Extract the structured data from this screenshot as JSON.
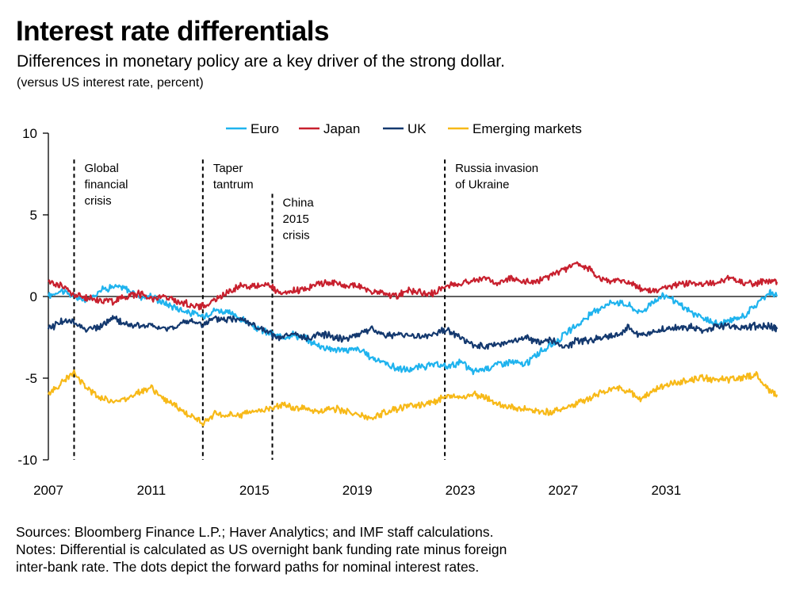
{
  "header": {
    "title": "Interest rate differentials",
    "subtitle": "Differences in monetary policy are a key driver of the strong dollar.",
    "units": "(versus US interest rate, percent)"
  },
  "footer": {
    "sources": "Sources: Bloomberg Finance L.P.; Haver Analytics; and IMF staff calculations.",
    "notes_line1": "Notes: Differential is calculated as US overnight bank funding rate minus foreign",
    "notes_line2": "inter-bank rate. The dots depict the forward paths for nominal interest rates."
  },
  "chart_data": {
    "type": "line",
    "title": "Interest rate differentials",
    "ylabel": "percent",
    "xlim": [
      2007,
      2035.3
    ],
    "ylim": [
      -10,
      10
    ],
    "x_ticks": [
      2007,
      2011,
      2015,
      2019,
      2023,
      2027,
      2031
    ],
    "y_ticks": [
      10,
      5,
      0,
      -5,
      -10
    ],
    "y_tick_labels": [
      "10",
      "5",
      "0",
      "-5",
      "-10"
    ],
    "zero_line": true,
    "legend_position": "top",
    "x": [
      2007.0,
      2007.5,
      2008.0,
      2008.5,
      2009.0,
      2009.5,
      2010.0,
      2010.5,
      2011.0,
      2011.5,
      2012.0,
      2012.5,
      2013.0,
      2013.5,
      2014.0,
      2014.5,
      2015.0,
      2015.5,
      2016.0,
      2016.5,
      2017.0,
      2017.5,
      2018.0,
      2018.5,
      2019.0,
      2019.5,
      2020.0,
      2020.5,
      2021.0,
      2021.5,
      2022.0,
      2022.5,
      2023.0,
      2023.5,
      2024.0,
      2024.5,
      2025.0,
      2025.5,
      2026.0,
      2026.5,
      2027.0,
      2027.5,
      2028.0,
      2028.5,
      2029.0,
      2029.5,
      2030.0,
      2030.5,
      2031.0,
      2031.5,
      2032.0,
      2032.5,
      2033.0,
      2033.5,
      2034.0,
      2034.5,
      2035.0,
      2035.3
    ],
    "series": [
      {
        "name": "Euro",
        "color": "#1FB3EE",
        "values": [
          0.0,
          0.4,
          0.0,
          -0.3,
          0.4,
          0.6,
          0.5,
          0.0,
          0.0,
          -0.4,
          -0.7,
          -1.0,
          -1.2,
          -0.8,
          -1.0,
          -1.4,
          -1.9,
          -2.2,
          -2.5,
          -2.3,
          -2.6,
          -3.0,
          -3.2,
          -3.3,
          -3.2,
          -3.7,
          -4.0,
          -4.4,
          -4.5,
          -4.3,
          -4.2,
          -4.3,
          -4.0,
          -4.6,
          -4.4,
          -4.1,
          -4.0,
          -4.2,
          -3.5,
          -3.0,
          -2.4,
          -1.8,
          -1.2,
          -0.6,
          -0.3,
          -0.5,
          -1.0,
          -0.3,
          0.1,
          -0.5,
          -1.0,
          -1.4,
          -1.7,
          -1.5,
          -1.2,
          -0.5,
          0.3,
          0.0
        ]
      },
      {
        "name": "Japan",
        "color": "#C8202E",
        "values": [
          0.9,
          0.7,
          0.1,
          -0.1,
          -0.2,
          -0.3,
          0.0,
          0.2,
          -0.1,
          0.0,
          -0.3,
          -0.5,
          -0.6,
          -0.2,
          0.3,
          0.7,
          0.6,
          0.8,
          0.1,
          0.3,
          0.5,
          0.8,
          0.9,
          0.6,
          0.7,
          0.3,
          0.2,
          0.0,
          0.4,
          0.2,
          0.2,
          0.7,
          0.8,
          1.0,
          1.1,
          0.8,
          1.2,
          0.9,
          0.9,
          1.3,
          1.6,
          2.0,
          1.7,
          1.0,
          1.0,
          0.9,
          0.5,
          0.3,
          0.5,
          0.8,
          0.8,
          0.7,
          0.9,
          1.1,
          0.8,
          0.8,
          1.0,
          0.9
        ]
      },
      {
        "name": "UK",
        "color": "#14396F",
        "values": [
          -2.0,
          -1.5,
          -1.6,
          -2.0,
          -1.9,
          -1.3,
          -1.7,
          -1.8,
          -1.8,
          -2.0,
          -1.8,
          -1.5,
          -1.7,
          -1.4,
          -1.4,
          -1.3,
          -1.8,
          -2.2,
          -2.6,
          -2.3,
          -2.6,
          -2.3,
          -2.4,
          -2.6,
          -2.3,
          -2.0,
          -2.3,
          -2.4,
          -2.3,
          -2.5,
          -2.3,
          -2.0,
          -2.5,
          -3.0,
          -3.1,
          -2.9,
          -2.8,
          -2.5,
          -2.8,
          -2.6,
          -3.2,
          -2.7,
          -2.7,
          -2.5,
          -2.4,
          -1.9,
          -2.4,
          -2.2,
          -2.0,
          -1.9,
          -1.9,
          -2.1,
          -1.8,
          -1.8,
          -1.9,
          -1.8,
          -1.8,
          -2.0
        ]
      },
      {
        "name": "Emerging markets",
        "color": "#F7B918",
        "values": [
          -6.0,
          -5.3,
          -4.7,
          -5.6,
          -6.2,
          -6.4,
          -6.3,
          -5.8,
          -5.6,
          -6.3,
          -6.8,
          -7.3,
          -7.7,
          -7.2,
          -7.3,
          -7.2,
          -7.0,
          -6.9,
          -6.6,
          -6.8,
          -6.8,
          -7.1,
          -6.8,
          -7.0,
          -7.2,
          -7.6,
          -7.1,
          -6.9,
          -6.7,
          -6.6,
          -6.4,
          -6.1,
          -6.2,
          -6.0,
          -6.2,
          -6.6,
          -6.8,
          -6.9,
          -7.0,
          -7.1,
          -6.8,
          -6.6,
          -6.2,
          -5.9,
          -5.6,
          -5.8,
          -6.2,
          -5.8,
          -5.4,
          -5.3,
          -5.1,
          -5.0,
          -5.1,
          -5.1,
          -4.9,
          -4.8,
          -5.8,
          -6.0
        ]
      }
    ],
    "events": [
      {
        "x": 2008.0,
        "label_lines": [
          "Global",
          "financial",
          "crisis"
        ],
        "label_y": 8.0
      },
      {
        "x": 2013.0,
        "label_lines": [
          "Taper",
          "tantrum"
        ],
        "label_y": 8.0
      },
      {
        "x": 2015.7,
        "label_lines": [
          "China",
          "2015",
          "crisis"
        ],
        "label_y": 5.9
      },
      {
        "x": 2022.4,
        "label_lines": [
          "Russia invasion",
          "of Ukraine"
        ],
        "label_y": 8.0
      }
    ]
  }
}
